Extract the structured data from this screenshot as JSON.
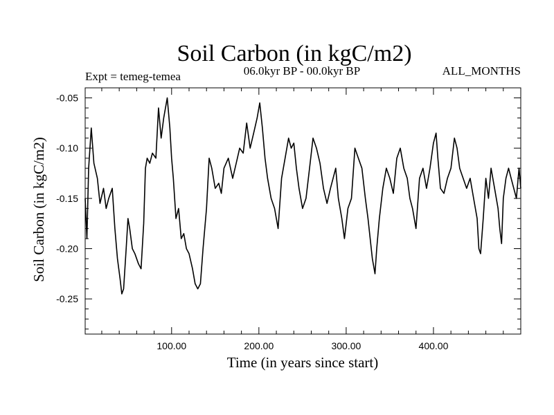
{
  "chart_data": {
    "type": "line",
    "title": "Soil Carbon (in kgC/m2)",
    "subtitle_left": "Expt = temeg-temea",
    "subtitle_center": "06.0kyr BP - 00.0kyr BP",
    "subtitle_right": "ALL_MONTHS",
    "xlabel": "Time (in years since start)",
    "ylabel": "Soil Carbon (in kgC/m2)",
    "xlim": [
      1,
      500
    ],
    "ylim": [
      -0.285,
      -0.04
    ],
    "grid": false,
    "legend": "none",
    "x_ticks": [
      100,
      200,
      300,
      400
    ],
    "x_tick_labels": [
      "100.00",
      "200.00",
      "300.00",
      "400.00"
    ],
    "y_ticks": [
      -0.25,
      -0.2,
      -0.15,
      -0.1,
      -0.05
    ],
    "y_tick_labels": [
      "-0.25",
      "-0.20",
      "-0.15",
      "-0.10",
      "-0.05"
    ],
    "series": [
      {
        "name": "temeg-temea",
        "color": "#000000",
        "x": [
          1,
          3,
          5,
          8,
          11,
          15,
          18,
          22,
          25,
          28,
          32,
          35,
          38,
          41,
          43,
          45,
          48,
          50,
          52,
          55,
          58,
          62,
          65,
          68,
          70,
          72,
          75,
          78,
          82,
          85,
          88,
          91,
          95,
          98,
          100,
          102,
          105,
          108,
          111,
          114,
          117,
          120,
          124,
          127,
          130,
          133,
          136,
          140,
          143,
          146,
          150,
          154,
          157,
          160,
          165,
          170,
          174,
          178,
          182,
          186,
          190,
          194,
          198,
          201,
          204,
          207,
          210,
          214,
          218,
          222,
          226,
          230,
          234,
          237,
          240,
          243,
          246,
          250,
          254,
          258,
          262,
          266,
          270,
          274,
          278,
          282,
          285,
          288,
          291,
          295,
          298,
          302,
          306,
          310,
          314,
          318,
          322,
          325,
          330,
          333,
          335,
          338,
          342,
          346,
          350,
          354,
          358,
          362,
          366,
          370,
          373,
          376,
          380,
          384,
          388,
          392,
          396,
          400,
          403,
          405,
          408,
          412,
          416,
          420,
          424,
          427,
          430,
          434,
          438,
          442,
          446,
          450,
          452,
          454,
          457,
          460,
          463,
          466,
          470,
          474,
          476,
          478,
          480,
          483,
          486,
          489,
          492,
          495,
          498,
          500
        ],
        "values": [
          -0.15,
          -0.19,
          -0.12,
          -0.08,
          -0.115,
          -0.13,
          -0.155,
          -0.14,
          -0.16,
          -0.15,
          -0.14,
          -0.18,
          -0.21,
          -0.23,
          -0.245,
          -0.24,
          -0.2,
          -0.17,
          -0.18,
          -0.2,
          -0.205,
          -0.215,
          -0.22,
          -0.175,
          -0.12,
          -0.11,
          -0.115,
          -0.105,
          -0.11,
          -0.06,
          -0.09,
          -0.07,
          -0.05,
          -0.08,
          -0.11,
          -0.13,
          -0.17,
          -0.16,
          -0.19,
          -0.185,
          -0.2,
          -0.205,
          -0.22,
          -0.235,
          -0.24,
          -0.235,
          -0.2,
          -0.16,
          -0.11,
          -0.12,
          -0.14,
          -0.135,
          -0.145,
          -0.12,
          -0.11,
          -0.13,
          -0.115,
          -0.1,
          -0.105,
          -0.075,
          -0.1,
          -0.085,
          -0.07,
          -0.055,
          -0.08,
          -0.11,
          -0.13,
          -0.15,
          -0.16,
          -0.18,
          -0.13,
          -0.11,
          -0.09,
          -0.1,
          -0.095,
          -0.12,
          -0.14,
          -0.16,
          -0.15,
          -0.12,
          -0.09,
          -0.1,
          -0.115,
          -0.14,
          -0.155,
          -0.14,
          -0.13,
          -0.12,
          -0.15,
          -0.17,
          -0.19,
          -0.16,
          -0.15,
          -0.1,
          -0.11,
          -0.12,
          -0.15,
          -0.17,
          -0.21,
          -0.225,
          -0.2,
          -0.17,
          -0.14,
          -0.12,
          -0.13,
          -0.145,
          -0.11,
          -0.1,
          -0.12,
          -0.13,
          -0.15,
          -0.16,
          -0.18,
          -0.13,
          -0.12,
          -0.14,
          -0.12,
          -0.095,
          -0.085,
          -0.11,
          -0.14,
          -0.145,
          -0.13,
          -0.12,
          -0.09,
          -0.1,
          -0.12,
          -0.13,
          -0.14,
          -0.13,
          -0.15,
          -0.17,
          -0.2,
          -0.205,
          -0.17,
          -0.13,
          -0.15,
          -0.12,
          -0.14,
          -0.16,
          -0.18,
          -0.195,
          -0.15,
          -0.13,
          -0.12,
          -0.13,
          -0.14,
          -0.15,
          -0.12,
          -0.14
        ]
      }
    ]
  }
}
